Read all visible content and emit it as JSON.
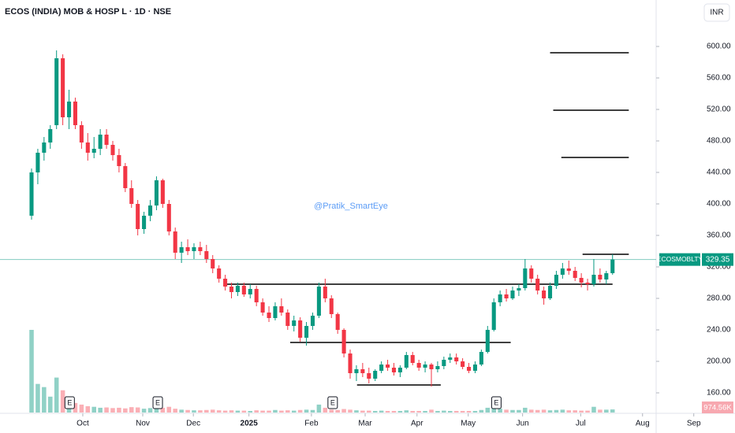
{
  "chart_data": {
    "type": "candlestick",
    "title": "ECOS (INDIA) MOB & HOSP L · 1D · NSE",
    "currency": "INR",
    "watermark": "@Pratik_SmartEye",
    "series": [
      {
        "name": "ECOSMOBLTY",
        "color_up": "#089981",
        "color_down": "#f23645",
        "ohlc": [
          [
            385,
            445,
            380,
            440
          ],
          [
            440,
            470,
            425,
            465
          ],
          [
            465,
            485,
            455,
            478
          ],
          [
            478,
            500,
            470,
            495
          ],
          [
            500,
            595,
            495,
            585
          ],
          [
            585,
            590,
            500,
            510
          ],
          [
            510,
            545,
            495,
            530
          ],
          [
            530,
            535,
            495,
            500
          ],
          [
            500,
            505,
            470,
            478
          ],
          [
            478,
            490,
            455,
            465
          ],
          [
            465,
            485,
            458,
            470
          ],
          [
            470,
            495,
            462,
            488
          ],
          [
            488,
            495,
            470,
            475
          ],
          [
            475,
            480,
            455,
            462
          ],
          [
            462,
            470,
            440,
            448
          ],
          [
            448,
            452,
            415,
            420
          ],
          [
            420,
            430,
            395,
            400
          ],
          [
            400,
            405,
            360,
            368
          ],
          [
            368,
            390,
            362,
            385
          ],
          [
            385,
            405,
            378,
            398
          ],
          [
            398,
            435,
            392,
            430
          ],
          [
            430,
            432,
            395,
            400
          ],
          [
            400,
            405,
            360,
            365
          ],
          [
            365,
            370,
            330,
            338
          ],
          [
            338,
            352,
            325,
            345
          ],
          [
            345,
            355,
            335,
            340
          ],
          [
            340,
            350,
            330,
            345
          ],
          [
            345,
            352,
            335,
            340
          ],
          [
            340,
            348,
            325,
            330
          ],
          [
            330,
            335,
            312,
            318
          ],
          [
            318,
            322,
            300,
            305
          ],
          [
            305,
            310,
            290,
            295
          ],
          [
            295,
            300,
            280,
            288
          ],
          [
            288,
            300,
            283,
            296
          ],
          [
            296,
            300,
            282,
            285
          ],
          [
            285,
            298,
            280,
            292
          ],
          [
            292,
            296,
            270,
            275
          ],
          [
            275,
            280,
            258,
            262
          ],
          [
            262,
            270,
            250,
            255
          ],
          [
            255,
            275,
            252,
            270
          ],
          [
            270,
            280,
            258,
            262
          ],
          [
            262,
            266,
            240,
            245
          ],
          [
            245,
            258,
            238,
            252
          ],
          [
            252,
            256,
            225,
            230
          ],
          [
            230,
            250,
            220,
            245
          ],
          [
            245,
            262,
            240,
            258
          ],
          [
            258,
            300,
            255,
            295
          ],
          [
            295,
            305,
            275,
            280
          ],
          [
            280,
            284,
            255,
            260
          ],
          [
            260,
            262,
            235,
            240
          ],
          [
            240,
            242,
            205,
            210
          ],
          [
            210,
            215,
            178,
            185
          ],
          [
            185,
            195,
            175,
            190
          ],
          [
            190,
            198,
            180,
            185
          ],
          [
            185,
            192,
            172,
            178
          ],
          [
            178,
            190,
            175,
            188
          ],
          [
            188,
            200,
            185,
            196
          ],
          [
            196,
            202,
            188,
            192
          ],
          [
            192,
            198,
            182,
            186
          ],
          [
            186,
            195,
            180,
            192
          ],
          [
            192,
            212,
            190,
            208
          ],
          [
            208,
            212,
            195,
            198
          ],
          [
            198,
            202,
            188,
            192
          ],
          [
            192,
            200,
            186,
            196
          ],
          [
            196,
            198,
            168,
            190
          ],
          [
            190,
            200,
            186,
            194
          ],
          [
            194,
            206,
            190,
            202
          ],
          [
            202,
            210,
            198,
            205
          ],
          [
            205,
            210,
            196,
            200
          ],
          [
            200,
            204,
            190,
            193
          ],
          [
            193,
            198,
            185,
            188
          ],
          [
            188,
            200,
            185,
            196
          ],
          [
            196,
            215,
            194,
            212
          ],
          [
            212,
            245,
            210,
            240
          ],
          [
            240,
            280,
            238,
            275
          ],
          [
            275,
            290,
            270,
            285
          ],
          [
            285,
            292,
            276,
            280
          ],
          [
            280,
            295,
            278,
            290
          ],
          [
            290,
            298,
            283,
            293
          ],
          [
            293,
            330,
            290,
            318
          ],
          [
            318,
            322,
            300,
            305
          ],
          [
            305,
            310,
            285,
            290
          ],
          [
            290,
            295,
            272,
            280
          ],
          [
            280,
            300,
            278,
            296
          ],
          [
            296,
            315,
            292,
            310
          ],
          [
            310,
            325,
            305,
            318
          ],
          [
            318,
            328,
            310,
            315
          ],
          [
            315,
            320,
            302,
            306
          ],
          [
            306,
            312,
            294,
            300
          ],
          [
            300,
            305,
            290,
            298
          ],
          [
            298,
            330,
            295,
            310
          ],
          [
            310,
            318,
            300,
            304
          ],
          [
            304,
            315,
            298,
            312
          ],
          [
            312,
            336,
            310,
            329.35
          ]
        ]
      }
    ],
    "volume": {
      "values": [
        26000000,
        9000000,
        8000000,
        5000000,
        11000000,
        7000000,
        4000000,
        3000000,
        2500000,
        2000000,
        1800000,
        1500000,
        1600000,
        1400000,
        1500000,
        1300000,
        1700000,
        1600000,
        1200000,
        1400000,
        2500000,
        1500000,
        1800000,
        1200000,
        900000,
        800000,
        700000,
        700000,
        800000,
        900000,
        700000,
        600000,
        700000,
        600000,
        600000,
        500000,
        700000,
        600000,
        600000,
        800000,
        600000,
        700000,
        600000,
        800000,
        900000,
        800000,
        2500000,
        1500000,
        900000,
        800000,
        1100000,
        900000,
        700000,
        600000,
        600000,
        500000,
        600000,
        500000,
        500000,
        500000,
        700000,
        500000,
        500000,
        500000,
        900000,
        500000,
        600000,
        500000,
        500000,
        500000,
        500000,
        500000,
        800000,
        1500000,
        1800000,
        1200000,
        900000,
        800000,
        800000,
        1500000,
        900000,
        800000,
        900000,
        700000,
        800000,
        900000,
        700000,
        700000,
        600000,
        600000,
        1800000,
        900000,
        900000,
        974560
      ],
      "value_labels": [
        null,
        null,
        null,
        null,
        null,
        null,
        null,
        null,
        null,
        null,
        null,
        null,
        null,
        null,
        null,
        null,
        null,
        null,
        null,
        null,
        null,
        null,
        null,
        null,
        null,
        null,
        null,
        null,
        null,
        null,
        null,
        null,
        null,
        null,
        null,
        null,
        null,
        null,
        null,
        null,
        null,
        null,
        null,
        null,
        null,
        null,
        null,
        null,
        null,
        null,
        null,
        null,
        null,
        null,
        null,
        null,
        null,
        null,
        null,
        null,
        null,
        null,
        null,
        null,
        null,
        null,
        null,
        null,
        null,
        null,
        null,
        null,
        null,
        null,
        null,
        null,
        null,
        null,
        null,
        null,
        null,
        null,
        null,
        null,
        null,
        null,
        null,
        null,
        null,
        null,
        null,
        null,
        null,
        "974.56K"
      ]
    },
    "xlim": [
      -5.05,
      112.6
    ],
    "xticks": [
      {
        "value": 8.2,
        "label": "Oct"
      },
      {
        "value": 17.8,
        "label": "Nov"
      },
      {
        "value": 25.9,
        "label": "Dec"
      },
      {
        "value": 34.8,
        "label": "2025"
      },
      {
        "value": 44.8,
        "label": "Feb"
      },
      {
        "value": 53.4,
        "label": "Mar"
      },
      {
        "value": 61.7,
        "label": "Apr"
      },
      {
        "value": 69.9,
        "label": "May"
      },
      {
        "value": 78.6,
        "label": "Jun"
      },
      {
        "value": 87.9,
        "label": "Jul"
      },
      {
        "value": 97.8,
        "label": "Aug"
      },
      {
        "value": 106.0,
        "label": "Sep"
      }
    ],
    "ylim": [
      134,
      659
    ],
    "yticks": [
      {
        "value": 160,
        "label": "160.00"
      },
      {
        "value": 200,
        "label": "200.00"
      },
      {
        "value": 240,
        "label": "240.00"
      },
      {
        "value": 280,
        "label": "280.00"
      },
      {
        "value": 320,
        "label": "320.00"
      },
      {
        "value": 360,
        "label": "360.00"
      },
      {
        "value": 400,
        "label": "400.00"
      },
      {
        "value": 440,
        "label": "440.00"
      },
      {
        "value": 480,
        "label": "480.00"
      },
      {
        "value": 520,
        "label": "520.00"
      },
      {
        "value": 560,
        "label": "560.00"
      },
      {
        "value": 600,
        "label": "600.00"
      }
    ],
    "drawn_lines": [
      {
        "x": [
          83.0,
          95.6
        ],
        "y": 592
      },
      {
        "x": [
          83.5,
          95.6
        ],
        "y": 519
      },
      {
        "x": [
          84.8,
          95.6
        ],
        "y": 459
      },
      {
        "x": [
          88.2,
          95.6
        ],
        "y": 336
      },
      {
        "x": [
          31.2,
          93
        ],
        "y": 298
      },
      {
        "x": [
          41.4,
          76.7
        ],
        "y": 224
      },
      {
        "x": [
          52.1,
          65.5
        ],
        "y": 170
      }
    ],
    "events": [
      {
        "x": 6.1,
        "label": "E"
      },
      {
        "x": 20.2,
        "label": "E"
      },
      {
        "x": 48.2,
        "label": "E"
      },
      {
        "x": 74.4,
        "label": "E"
      }
    ]
  }
}
